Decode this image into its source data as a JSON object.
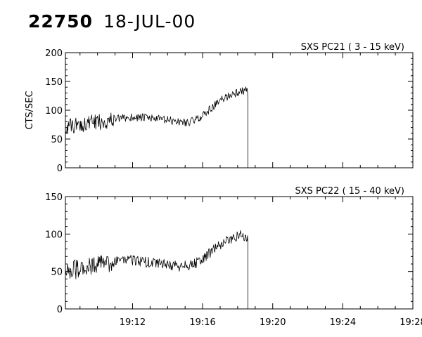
{
  "header": {
    "id": "22750",
    "date": "18-JUL-00"
  },
  "colors": {
    "line": "#000000",
    "background": "#ffffff"
  },
  "chart_data": [
    {
      "type": "line",
      "title": "SXS PC21  (  3 - 15 keV)",
      "ylabel": "CTS/SEC",
      "xlabel": "",
      "xlim": [
        "19:08:10",
        "19:28:00"
      ],
      "ylim": [
        0,
        200
      ],
      "yticks": [
        0,
        50,
        100,
        150,
        200
      ],
      "xticks": [
        "19:12",
        "19:16",
        "19:20",
        "19:24",
        "19:28"
      ],
      "show_xtick_labels": false,
      "grid": false,
      "dropout_time": "19:18:35",
      "series": [
        {
          "x": [
            "19:08:10",
            "19:08:40",
            "19:09:10",
            "19:09:40",
            "19:10:10",
            "19:10:40",
            "19:11:10",
            "19:11:40",
            "19:12:10",
            "19:12:40",
            "19:13:10",
            "19:13:40",
            "19:14:10",
            "19:14:40",
            "19:15:10",
            "19:15:40",
            "19:16:10",
            "19:16:40",
            "19:17:10",
            "19:17:40",
            "19:18:10",
            "19:18:30",
            "19:18:34"
          ],
          "y": [
            70,
            73,
            76,
            78,
            80,
            82,
            85,
            87,
            88,
            87,
            86,
            84,
            82,
            80,
            79,
            84,
            95,
            108,
            120,
            128,
            132,
            135,
            130
          ]
        }
      ]
    },
    {
      "type": "line",
      "title": "SXS PC22  ( 15 - 40 keV)",
      "ylabel": "",
      "xlabel": "",
      "xlim": [
        "19:08:10",
        "19:28:00"
      ],
      "ylim": [
        0,
        150
      ],
      "yticks": [
        0,
        50,
        100,
        150
      ],
      "xticks": [
        "19:12",
        "19:16",
        "19:20",
        "19:24",
        "19:28"
      ],
      "show_xtick_labels": true,
      "grid": false,
      "dropout_time": "19:18:35",
      "series": [
        {
          "x": [
            "19:08:10",
            "19:08:40",
            "19:09:10",
            "19:09:40",
            "19:10:10",
            "19:10:40",
            "19:11:10",
            "19:11:40",
            "19:12:10",
            "19:12:40",
            "19:13:10",
            "19:13:40",
            "19:14:10",
            "19:14:40",
            "19:15:10",
            "19:15:40",
            "19:16:10",
            "19:16:40",
            "19:17:10",
            "19:17:40",
            "19:18:10",
            "19:18:30",
            "19:18:34"
          ],
          "y": [
            50,
            53,
            55,
            58,
            60,
            62,
            64,
            65,
            65,
            63,
            62,
            60,
            58,
            57,
            58,
            62,
            70,
            80,
            88,
            94,
            98,
            97,
            95
          ]
        }
      ]
    }
  ]
}
